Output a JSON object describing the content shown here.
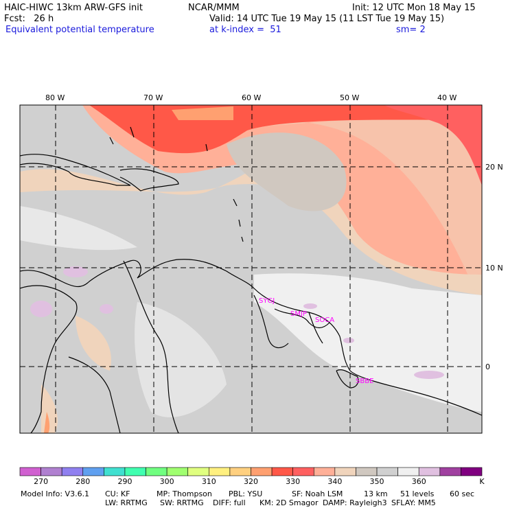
{
  "header": {
    "model": "HAIC-HIWC 13km ARW-GFS init",
    "org": "NCAR/MMM",
    "init": "Init: 12 UTC Mon 18 May 15",
    "fcst": "Fcst:   26 h",
    "valid": "Valid: 14 UTC Tue 19 May 15 (11 LST Tue 19 May 15)",
    "field": "Equivalent potential temperature",
    "level": "at k-index =  51",
    "smooth": "sm= 2"
  },
  "map": {
    "lon_labels": [
      "80 W",
      "70 W",
      "60 W",
      "50 W",
      "40 W"
    ],
    "lat_labels": [
      "20 N",
      "10 N",
      "0"
    ],
    "stations": [
      "SYGJ",
      "SMJP",
      "SOCA",
      "SBBE"
    ],
    "station_color": "#ff00ff"
  },
  "colorbar": {
    "colors": [
      "#d060d0",
      "#b080d0",
      "#9080f0",
      "#60a0f0",
      "#40e0d0",
      "#40ffb0",
      "#70ff80",
      "#a0ff70",
      "#e0ff80",
      "#fff080",
      "#ffd080",
      "#ffa070",
      "#ff5848",
      "#ff6060",
      "#ffb098",
      "#f0d4bc",
      "#d0c8c0",
      "#d0d0d0",
      "#f0f0f0",
      "#e0c0e0",
      "#a040a0",
      "#800080"
    ],
    "tick_labels": [
      "270",
      "280",
      "290",
      "300",
      "310",
      "320",
      "330",
      "340",
      "350",
      "360"
    ],
    "unit": "K"
  },
  "footer": {
    "line1": [
      "Model Info: V3.6.1",
      "CU: KF",
      "MP: Thompson",
      "PBL: YSU",
      "SF: Noah LSM",
      "13 km",
      "51 levels",
      "60 sec"
    ],
    "line2": [
      "LW: RRTMG",
      "SW: RRTMG",
      "DIFF: full",
      "KM: 2D Smagor",
      "DAMP: Rayleigh3",
      "SFLAY: MM5"
    ]
  }
}
